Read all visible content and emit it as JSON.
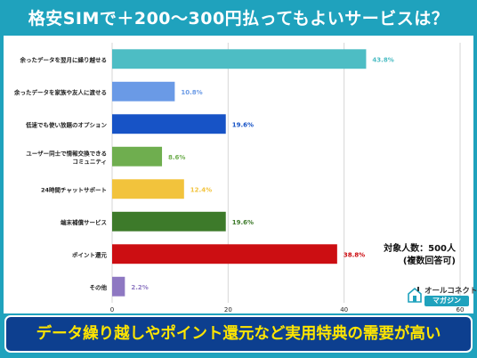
{
  "header": {
    "title": "格安SIMで＋200〜300円払ってもよいサービスは？"
  },
  "note": {
    "line1": "対象人数：500人",
    "line2": "(複数回答可)"
  },
  "logo": {
    "top": "オールコネクト",
    "bottom": "マガジン",
    "icon": "house-icon"
  },
  "banner": {
    "text": "データ繰り越しやポイント還元など実用特典の需要が高い"
  },
  "chart_data": {
    "type": "bar",
    "orientation": "horizontal",
    "categories": [
      "余ったデータを翌月に繰り越せる",
      "余ったデータを家族や友人に渡せる",
      "低速でも使い放題のオプション",
      "ユーザー同士で情報交換できるコミュニティ",
      "24時間チャットサポート",
      "端末補償サービス",
      "ポイント還元",
      "その他"
    ],
    "category_lines": [
      [
        "余ったデータを翌月に繰り越せる"
      ],
      [
        "余ったデータを家族や友人に渡せる"
      ],
      [
        "低速でも使い放題のオプション"
      ],
      [
        "ユーザー同士で情報交換できる",
        "コミュニティ"
      ],
      [
        "24時間チャットサポート"
      ],
      [
        "端末補償サービス"
      ],
      [
        "ポイント還元"
      ],
      [
        "その他"
      ]
    ],
    "values": [
      43.8,
      10.8,
      19.6,
      8.6,
      12.4,
      19.6,
      38.8,
      2.2
    ],
    "value_labels": [
      "43.8%",
      "10.8%",
      "19.6%",
      "8.6%",
      "12.4%",
      "19.6%",
      "38.8%",
      "2.2%"
    ],
    "colors": [
      "#4dbdc4",
      "#6a9ae6",
      "#1753c6",
      "#6fae4f",
      "#f2c33c",
      "#3d7a2a",
      "#cc0e12",
      "#8e78c2"
    ],
    "xlim": [
      0,
      60
    ],
    "xticks": [
      0,
      20,
      40,
      60
    ],
    "xtick_labels": [
      "0",
      "20",
      "40",
      "60"
    ],
    "grid": true
  }
}
